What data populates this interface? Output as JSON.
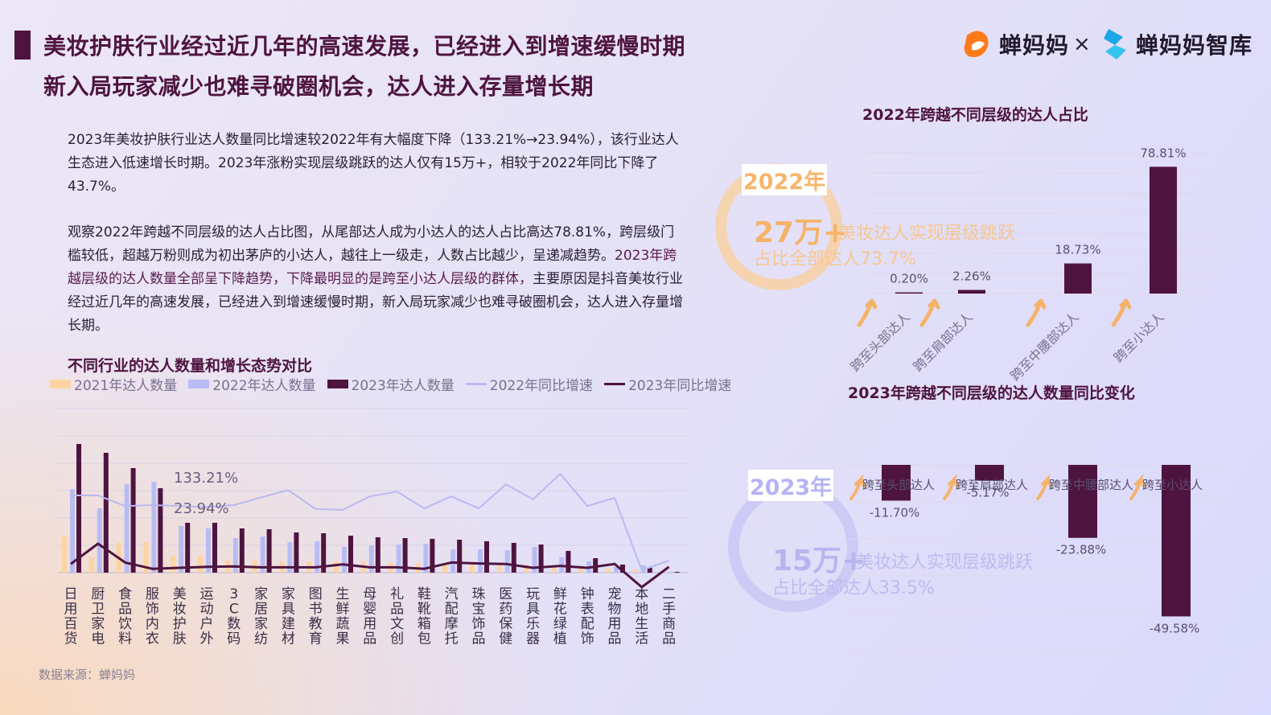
{
  "header": {
    "title_line1": "美妆护肤行业经过近几年的高速发展，已经进入到增速缓慢时期",
    "title_line2": "新入局玩家减少也难寻破圈机会，达人进入存量增长期"
  },
  "logos": {
    "brand1": "蝉妈妈",
    "separator": "×",
    "brand2": "蝉妈妈智库",
    "brand1_color": "#ff7a1a",
    "brand2_color": "#1aa7e8"
  },
  "body": {
    "para1": "2023年美妆护肤行业达人数量同比增速较2022年有大幅度下降（133.21%→23.94%），该行业达人生态进入低速增长时期。2023年涨粉实现层级跳跃的达人仅有15万+，相较于2022年同比下降了43.7%。",
    "para2_part1": "观察2022年跨越不同层级的达人占比图，从尾部达人成为小达人的达人占比高达78.81%，跨层级门槛较低，超越万粉则成为初出茅庐的小达人，越往上一级走，人数占比越少，呈递减趋势。",
    "para2_part2": "2023年跨越层级的达人数量全部呈下降趋势，下降最明显的是跨至小达人层级的群体，",
    "para2_part3": "主要原因是抖音美妆行业经过近几年的高速发展，已经进入到增速缓慢时期，新入局玩家减少也难寻破圈机会，达人进入存量增长期。"
  },
  "highlights": {
    "y2022": {
      "year": "2022年",
      "number": "27万+",
      "desc": "美妆达人实现层级跳跃",
      "sub": "占比全部达人73.7%"
    },
    "y2023": {
      "year": "2023年",
      "number": "15万+",
      "desc": "美妆达人实现层级跳跃",
      "sub": "占比全部达人33.5%"
    }
  },
  "source": "数据来源：蝉妈妈",
  "chart_data": [
    {
      "type": "bar",
      "title": "不同行业的达人数量和增长态势对比",
      "categories": [
        "日用百货",
        "厨卫家电",
        "食品饮料",
        "服饰内衣",
        "美妆护肤",
        "运动户外",
        "3C数码",
        "家居家纺",
        "家具建材",
        "图书教育",
        "生鲜蔬果",
        "母婴用品",
        "礼品文创",
        "鞋靴箱包",
        "汽配摩托",
        "珠宝饰品",
        "医药保健",
        "玩具乐器",
        "鲜花绿植",
        "钟表配饰",
        "宠物用品",
        "本地生活",
        "二手商品"
      ],
      "series": [
        {
          "name": "2021年达人数量",
          "kind": "bar",
          "color": "#fcd4a4",
          "values": [
            45,
            19,
            37,
            38,
            21,
            21,
            15,
            15,
            14,
            14,
            14,
            14,
            13,
            12,
            12,
            11,
            11,
            10,
            8,
            6,
            5,
            4,
            1
          ]
        },
        {
          "name": "2022年达人数量",
          "kind": "bar",
          "color": "#b8bcf4",
          "values": [
            104,
            80,
            110,
            113,
            58,
            55,
            43,
            45,
            38,
            39,
            32,
            34,
            35,
            36,
            29,
            29,
            28,
            32,
            19,
            14,
            7,
            9,
            1
          ]
        },
        {
          "name": "2023年达人数量",
          "kind": "bar",
          "color": "#4e1440",
          "values": [
            160,
            149,
            130,
            105,
            62,
            62,
            55,
            54,
            50,
            49,
            46,
            44,
            43,
            42,
            41,
            39,
            37,
            35,
            27,
            18,
            10,
            6,
            1
          ]
        },
        {
          "name": "2022年同比增速",
          "kind": "line",
          "color": "#b9b9f2",
          "values": [
            160,
            160,
            138,
            140,
            138,
            136,
            140,
            156,
            171,
            132,
            130,
            158,
            168,
            133,
            158,
            133,
            183,
            152,
            205,
            138,
            155,
            5,
            25
          ]
        },
        {
          "name": "2023年同比增速",
          "kind": "line",
          "color": "#4e1440",
          "values": [
            18,
            60,
            21,
            8,
            10,
            12,
            13,
            11,
            11,
            11,
            17,
            11,
            11,
            8,
            21,
            19,
            18,
            10,
            14,
            10,
            18,
            -30,
            12
          ]
        }
      ],
      "annotations": [
        "133.21%",
        "23.94%"
      ]
    },
    {
      "type": "bar",
      "title": "2022年跨越不同层级的达人占比",
      "categories": [
        "跨至头部达人",
        "跨至肩部达人",
        "跨至中腰部达人",
        "跨至小达人"
      ],
      "values": [
        0.2,
        2.26,
        18.73,
        78.81
      ],
      "labels": [
        "0.20%",
        "2.26%",
        "18.73%",
        "78.81%"
      ],
      "ylim": [
        0,
        85
      ]
    },
    {
      "type": "bar",
      "title": "2023年跨越不同层级的达人数量同比变化",
      "categories": [
        "跨至头部达人",
        "跨至肩部达人",
        "跨至中腰部达人",
        "跨至小达人"
      ],
      "values": [
        -11.7,
        -5.17,
        -23.88,
        -49.58
      ],
      "labels": [
        "-11.70%",
        "-5.17%",
        "-23.88%",
        "-49.58%"
      ],
      "ylim": [
        -50,
        0
      ]
    }
  ]
}
